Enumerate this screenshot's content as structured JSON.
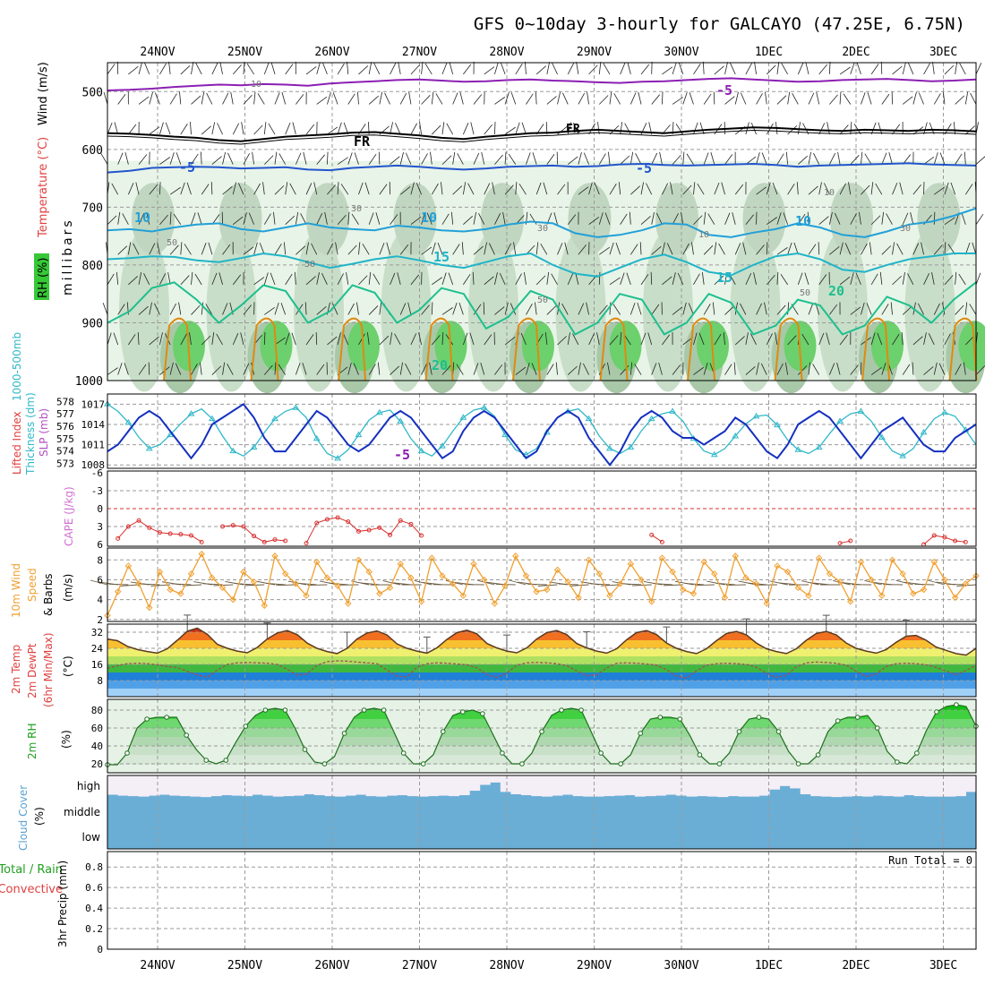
{
  "chart_data": {
    "type": "meteogram",
    "title": "GFS 0~10day 3-hourly for GALCAYO (47.25E, 6.75N)",
    "dates": [
      "24NOV",
      "25NOV",
      "26NOV",
      "27NOV",
      "28NOV",
      "29NOV",
      "30NOV",
      "1DEC",
      "2DEC",
      "3DEC"
    ],
    "panels": {
      "upper": {
        "ylabels": [
          "RH (%)",
          "Temperature (°C)",
          "Wind (m/s)",
          "millibars"
        ],
        "yticks": [
          "500",
          "600",
          "700",
          "800",
          "900",
          "1000"
        ],
        "ylim": [
          1000,
          450
        ],
        "isotherm_labels": [
          "-5",
          "FR",
          "-5",
          "10",
          "10",
          "10",
          "15",
          "15",
          "20",
          "20"
        ],
        "isotherms": [
          {
            "name": "-5 upper",
            "color": "#8b1fb3",
            "p": [
              498,
              497,
              495,
              492,
              490,
              488,
              489,
              487,
              488,
              490,
              486,
              484,
              482,
              480,
              479,
              481,
              483,
              482,
              480,
              479,
              481,
              482,
              484,
              485,
              483,
              482,
              480,
              478,
              477,
              479,
              481,
              483,
              482,
              480,
              479,
              478,
              480,
              482,
              481,
              479
            ]
          },
          {
            "name": "FR",
            "color": "#000000",
            "p": [
              572,
              573,
              575,
              578,
              580,
              584,
              586,
              582,
              578,
              576,
              574,
              571,
              570,
              573,
              576,
              580,
              582,
              578,
              575,
              572,
              571,
              568,
              566,
              568,
              570,
              572,
              569,
              566,
              564,
              562,
              563,
              565,
              567,
              568,
              566,
              567,
              568,
              566,
              567,
              569
            ]
          },
          {
            "name": "-5",
            "color": "#2255cc",
            "p": [
              640,
              637,
              632,
              631,
              630,
              631,
              633,
              632,
              631,
              635,
              636,
              632,
              630,
              628,
              630,
              633,
              635,
              633,
              630,
              629,
              628,
              630,
              629,
              626,
              625,
              627,
              628,
              627,
              626,
              625,
              627,
              630,
              628,
              627,
              626,
              625,
              624,
              626,
              627,
              628
            ]
          },
          {
            "name": "10",
            "color": "#22a0d8",
            "p": [
              740,
              738,
              742,
              735,
              730,
              728,
              738,
              742,
              735,
              728,
              735,
              738,
              740,
              732,
              735,
              740,
              742,
              738,
              730,
              725,
              728,
              745,
              752,
              748,
              740,
              728,
              730,
              748,
              752,
              744,
              738,
              728,
              735,
              748,
              752,
              742,
              730,
              725,
              715,
              702
            ]
          },
          {
            "name": "15",
            "color": "#20b4c8",
            "p": [
              790,
              788,
              785,
              786,
              792,
              795,
              788,
              780,
              785,
              795,
              805,
              798,
              790,
              785,
              792,
              800,
              805,
              795,
              785,
              780,
              800,
              815,
              820,
              805,
              790,
              782,
              795,
              812,
              818,
              800,
              785,
              780,
              790,
              808,
              812,
              800,
              790,
              785,
              780,
              780
            ]
          },
          {
            "name": "20",
            "color": "#1dbf8e",
            "p": [
              900,
              880,
              840,
              830,
              860,
              900,
              870,
              835,
              845,
              900,
              880,
              835,
              848,
              900,
              878,
              840,
              850,
              910,
              890,
              845,
              860,
              920,
              900,
              850,
              860,
              920,
              900,
              850,
              865,
              920,
              905,
              860,
              870,
              920,
              905,
              855,
              870,
              900,
              860,
              830
            ]
          }
        ],
        "rh_contour_labels": [
          "10",
          "10",
          "30",
          "30",
          "30",
          "50",
          "50",
          "50",
          "50",
          "10"
        ]
      },
      "slp": {
        "ylabel_left": "1000-500mb Thickness (dm)",
        "ylabel_right": "SLP (mb)",
        "thickness_ticks": [
          "578",
          "577",
          "576",
          "575",
          "574",
          "573"
        ],
        "slp_ticks": [
          "1017",
          "1014",
          "1011",
          "1008"
        ],
        "thickness": [
          577.8,
          577.2,
          576.3,
          575.1,
          574.2,
          574.5,
          575.3,
          576.2,
          577.0,
          577.4,
          576.6,
          575.2,
          574.0,
          573.6,
          574.3,
          575.5,
          576.6,
          577.2,
          577.5,
          576.7,
          575.0,
          573.8,
          573.4,
          574.1,
          575.3,
          576.5,
          577.1,
          577.3,
          576.4,
          575.0,
          574.0,
          573.6,
          574.4,
          575.6,
          576.7,
          577.3,
          577.5,
          576.8,
          575.3,
          574.1,
          573.7,
          574.2,
          575.5,
          576.7,
          577.2,
          577.4,
          576.6,
          575.2,
          574.2,
          573.8,
          574.3,
          575.6,
          576.6,
          577.0,
          577.2,
          576.4,
          575.0,
          574.0,
          573.7,
          574.2,
          575.2,
          576.2,
          576.8,
          576.9,
          576.1,
          574.9,
          574.1,
          573.8,
          574.3,
          575.4,
          576.4,
          577.0,
          577.2,
          576.4,
          575.1,
          574.0,
          573.6,
          574.2,
          575.5,
          576.6,
          577.1,
          576.8,
          575.7,
          574.5
        ],
        "slp": [
          1010,
          1011,
          1013,
          1015,
          1016,
          1015,
          1013,
          1011,
          1009,
          1011,
          1014,
          1015,
          1016,
          1017,
          1015,
          1012,
          1010,
          1010,
          1012,
          1014,
          1016,
          1015,
          1013,
          1011,
          1010,
          1011,
          1013,
          1015,
          1016,
          1015,
          1013,
          1011,
          1009,
          1010,
          1013,
          1015,
          1016,
          1015,
          1013,
          1011,
          1009,
          1010,
          1013,
          1015,
          1016,
          1015,
          1012,
          1010,
          1008,
          1010,
          1013,
          1015,
          1016,
          1015,
          1013,
          1012,
          1012,
          1011,
          1012,
          1013,
          1015,
          1014,
          1012,
          1010,
          1009,
          1011,
          1014,
          1015,
          1016,
          1015,
          1013,
          1011,
          1009,
          1011,
          1013,
          1014,
          1015,
          1013,
          1011,
          1010,
          1010,
          1012,
          1013,
          1014
        ]
      },
      "cape": {
        "ylabel_left": "Lifted Index",
        "ylabel_right": "CAPE (J/kg)",
        "yticks": [
          "-6",
          "-3",
          "0",
          "3",
          "6"
        ],
        "lifted_index": [
          6.5,
          5.0,
          3.0,
          2.0,
          3.2,
          4.0,
          4.2,
          4.3,
          4.5,
          5.6,
          6.2,
          3.0,
          2.8,
          3.0,
          4.6,
          5.6,
          5.2,
          5.4,
          6.4,
          5.8,
          2.4,
          1.8,
          1.5,
          2.2,
          3.8,
          3.6,
          3.2,
          4.4,
          2.0,
          2.6,
          4.5,
          6.4,
          6.2,
          6.3,
          6.2,
          6.5,
          6.5,
          6.5,
          6.4,
          6.5,
          6.6,
          6.6,
          6.5,
          6.6,
          6.5,
          6.6,
          6.6,
          6.5,
          6.6,
          6.6,
          6.5,
          6.5,
          4.4,
          5.6,
          6.4,
          6.5,
          6.5,
          6.6,
          6.5,
          6.6,
          6.5,
          6.5,
          6.5,
          6.5,
          6.5,
          6.5,
          6.5,
          6.5,
          6.5,
          6.3,
          5.8,
          5.4,
          6.5,
          6.5,
          6.5,
          6.5,
          6.5,
          6.4,
          6.0,
          4.5,
          4.8,
          5.4,
          5.6,
          6.6
        ]
      },
      "wind10m": {
        "ylabel": "10m Wind Speed & Barbs (m/s)",
        "yticks": [
          "2",
          "4",
          "6",
          "8"
        ],
        "speed": [
          2.4,
          4.8,
          7.4,
          5.6,
          3.2,
          6.8,
          5.0,
          4.6,
          6.6,
          8.6,
          6.2,
          5.2,
          4.0,
          6.8,
          5.8,
          3.4,
          8.4,
          6.6,
          5.6,
          4.4,
          7.8,
          6.2,
          5.4,
          3.6,
          8.0,
          6.8,
          4.6,
          5.2,
          7.6,
          6.2,
          3.8,
          8.2,
          6.4,
          5.6,
          4.4,
          7.6,
          6.0,
          3.6,
          5.4,
          8.4,
          6.4,
          4.8,
          5.0,
          7.0,
          5.8,
          4.2,
          8.0,
          6.6,
          4.4,
          5.6,
          7.6,
          6.0,
          3.8,
          8.2,
          6.8,
          5.0,
          4.6,
          7.8,
          6.6,
          4.2,
          8.4,
          6.2,
          5.6,
          3.6,
          7.4,
          6.8,
          5.2,
          4.4,
          8.2,
          6.6,
          5.8,
          3.8,
          7.8,
          6.0,
          4.4,
          8.0,
          6.6,
          4.6,
          5.0,
          7.8,
          6.0,
          4.2,
          5.6,
          6.4
        ]
      },
      "temp": {
        "ylabel": "2m Temp 2m DewPt (6hr Min/Max) (°C)",
        "yticks": [
          "8",
          "16",
          "24",
          "32"
        ],
        "temperature": [
          28.6,
          27.8,
          25.0,
          23.4,
          22.4,
          21.6,
          23.8,
          28.0,
          32.5,
          34.0,
          31.0,
          26.0,
          24.0,
          22.6,
          21.8,
          24.4,
          28.6,
          31.6,
          32.8,
          30.8,
          26.6,
          24.0,
          22.4,
          21.4,
          24.0,
          28.6,
          31.6,
          32.6,
          30.6,
          26.2,
          24.0,
          22.6,
          21.6,
          24.2,
          28.4,
          31.8,
          33.0,
          31.2,
          26.4,
          24.2,
          22.6,
          21.8,
          24.2,
          28.6,
          31.8,
          32.8,
          30.8,
          26.4,
          24.2,
          22.6,
          21.6,
          23.8,
          28.2,
          31.8,
          32.8,
          30.8,
          26.6,
          24.0,
          22.4,
          21.4,
          23.8,
          27.8,
          31.4,
          32.4,
          30.6,
          26.6,
          23.8,
          22.4,
          21.4,
          23.8,
          28.0,
          31.4,
          32.4,
          30.6,
          26.6,
          24.0,
          22.6,
          21.6,
          23.4,
          27.0,
          30.0,
          30.4,
          28.0,
          24.6,
          23.0,
          21.4,
          20.6,
          24.0
        ],
        "dewpoint": [
          14.0,
          15.4,
          16.4,
          16.6,
          16.4,
          15.8,
          15.0,
          14.4,
          12.6,
          10.8,
          9.6,
          13.2,
          16.0,
          16.8,
          17.0,
          16.8,
          16.6,
          16.0,
          13.6,
          10.6,
          11.4,
          15.6,
          17.4,
          17.8,
          17.6,
          17.2,
          16.8,
          16.4,
          13.2,
          10.2,
          9.8,
          14.6,
          16.4,
          16.8,
          16.6,
          16.2,
          15.8,
          14.4,
          11.0,
          9.6,
          11.6,
          15.6,
          16.8,
          17.0,
          16.8,
          16.4,
          15.4,
          12.8,
          10.4,
          10.8,
          14.2,
          16.6,
          16.8,
          16.6,
          16.2,
          15.6,
          13.4,
          10.2,
          9.2,
          12.8,
          15.6,
          16.4,
          16.6,
          16.4,
          16.0,
          14.6,
          11.6,
          9.6,
          10.6,
          14.8,
          16.8,
          17.2,
          17.0,
          16.6,
          15.6,
          12.6,
          10.0,
          11.2,
          15.0,
          16.4,
          16.6,
          16.4,
          15.8,
          14.6,
          12.6,
          11.0,
          13.0,
          15.6
        ]
      },
      "rh2m": {
        "ylabel": "2m RH (%)",
        "yticks": [
          "20",
          "40",
          "60",
          "80"
        ],
        "rh": [
          19,
          19,
          32,
          60,
          70,
          72,
          72,
          72,
          52,
          36,
          24,
          20,
          24,
          44,
          62,
          74,
          80,
          82,
          80,
          60,
          36,
          22,
          20,
          28,
          54,
          72,
          80,
          82,
          80,
          56,
          32,
          20,
          20,
          30,
          56,
          74,
          78,
          80,
          76,
          54,
          32,
          20,
          20,
          32,
          56,
          74,
          80,
          82,
          80,
          56,
          32,
          20,
          20,
          30,
          54,
          70,
          72,
          72,
          70,
          52,
          30,
          20,
          20,
          32,
          56,
          70,
          72,
          70,
          56,
          34,
          20,
          20,
          30,
          56,
          68,
          72,
          72,
          74,
          60,
          34,
          22,
          20,
          32,
          58,
          78,
          84,
          86,
          84,
          62
        ]
      },
      "cloud": {
        "ylabel": "Cloud Cover (%)",
        "yticks": [
          "high",
          "middle",
          "low"
        ],
        "high_bars": [
          0.18,
          0.14,
          0.12,
          0.1,
          0.14,
          0.18,
          0.14,
          0.12,
          0.1,
          0.08,
          0.12,
          0.16,
          0.14,
          0.12,
          0.18,
          0.14,
          0.1,
          0.12,
          0.14,
          0.2,
          0.16,
          0.12,
          0.1,
          0.14,
          0.18,
          0.12,
          0.1,
          0.14,
          0.16,
          0.12,
          0.1,
          0.12,
          0.14,
          0.12,
          0.16,
          0.35,
          0.6,
          0.7,
          0.3,
          0.2,
          0.16,
          0.12,
          0.1,
          0.14,
          0.18,
          0.12,
          0.1,
          0.1,
          0.12,
          0.14,
          0.16,
          0.1,
          0.12,
          0.14,
          0.18,
          0.14,
          0.1,
          0.12,
          0.1,
          0.08,
          0.12,
          0.1,
          0.1,
          0.14,
          0.4,
          0.55,
          0.45,
          0.2,
          0.12,
          0.1,
          0.08,
          0.1,
          0.12,
          0.1,
          0.14,
          0.12,
          0.1,
          0.16,
          0.12,
          0.1,
          0.1,
          0.1,
          0.12,
          0.3
        ]
      },
      "precip": {
        "ylabel_left": "Total / Rain Convective",
        "ylabel_right": "3hr Precip (mm)",
        "yticks": [
          "0",
          "0.2",
          "0.4",
          "0.6",
          "0.8"
        ],
        "run_total": "Run Total = 0",
        "values": []
      }
    }
  },
  "labels": {
    "rh_short": "RH (%)",
    "temperature": "Temperature (°C)",
    "wind": "Wind (m/s)",
    "millibars": "millibars",
    "lifted_index": "Lifted Index",
    "thickness_line1": "1000-500mb",
    "thickness_line2": "Thickness (dm)",
    "slp": "SLP (mb)",
    "cape": "CAPE (J/kg)",
    "wind10m_line1": "10m Wind",
    "wind10m_line2": "Speed",
    "wind10m_line3": "& Barbs",
    "wind10m_units": "(m/s)",
    "temp_line1": "2m Temp",
    "temp_line2": "2m DewPt",
    "temp_line3": "(6hr Min/Max)",
    "temp_units": "(°C)",
    "rh2m": "2m RH",
    "rh2m_units": "(%)",
    "cloud": "Cloud Cover",
    "cloud_units": "(%)",
    "precip_line1": "Total / Rain",
    "precip_line2": "Convective",
    "precip_units": "3hr Precip (mm)"
  },
  "colors": {
    "purple": "#8b1fb3",
    "black": "#000000",
    "blue": "#2255cc",
    "cyan": "#22a0d8",
    "teal": "#20b4c8",
    "green_iso": "#1dbf8e",
    "orange": "#e08a10",
    "slp_blue": "#1530c0",
    "thickness_cyan": "#30b8c8",
    "li_red": "#d83030",
    "wind_orange": "#f0a030",
    "cloud_blue": "#6aaed6",
    "rh_green": "#20c020"
  }
}
